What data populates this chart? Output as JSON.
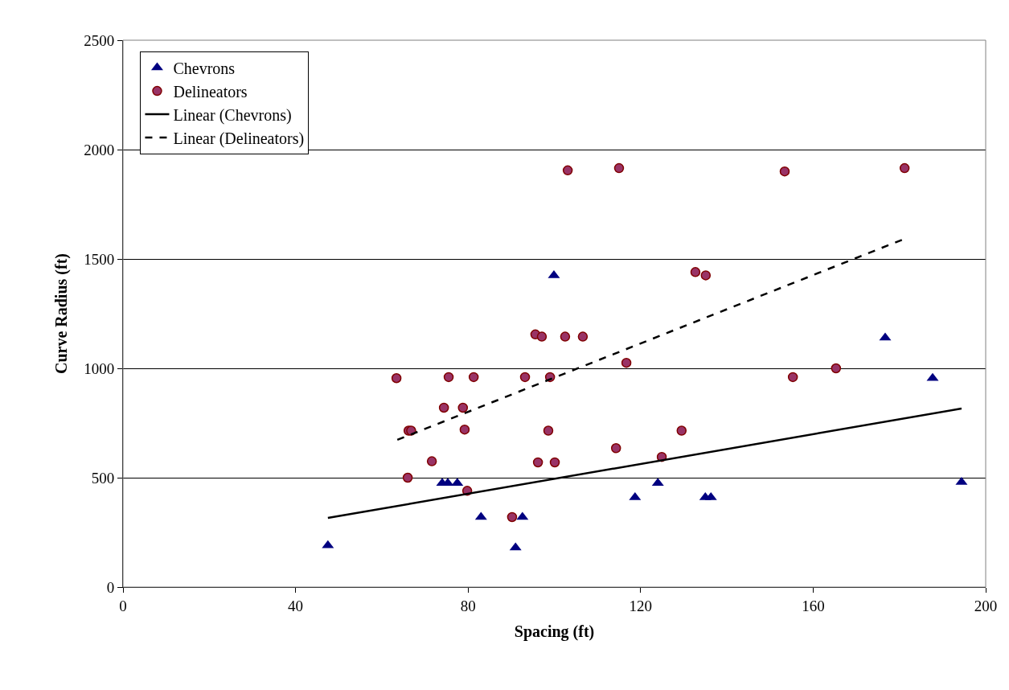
{
  "chart_data": {
    "type": "scatter",
    "xlabel": "Spacing (ft)",
    "ylabel": "Curve Radius (ft)",
    "xlim": [
      0,
      200
    ],
    "xticks": [
      0,
      40,
      80,
      120,
      160,
      200
    ],
    "ylim": [
      0,
      2500
    ],
    "yticks": [
      0,
      500,
      1000,
      1500,
      2000,
      2500
    ],
    "grid": "y",
    "legend": "top left",
    "series": [
      {
        "name": "Chevrons",
        "marker": "triangle",
        "color": "#000080",
        "x": [
          47.5,
          74,
          75.3,
          77.5,
          83,
          91,
          92.6,
          99.9,
          118.7,
          124,
          135,
          136.3,
          176.7,
          187.7,
          194.4
        ],
        "values": [
          190,
          475,
          475,
          475,
          320,
          180,
          320,
          1425,
          410,
          475,
          410,
          410,
          1140,
          955,
          480
        ]
      },
      {
        "name": "Delineators",
        "marker": "circle",
        "color": "#993366",
        "x": [
          63.4,
          66.2,
          66.8,
          66,
          71.6,
          74.4,
          75.5,
          78.8,
          79.2,
          79.8,
          81.3,
          90.2,
          93.2,
          95.6,
          96.2,
          97.1,
          98.6,
          99,
          100.1,
          102.5,
          103.1,
          106.6,
          114.3,
          115,
          116.7,
          124.9,
          129.5,
          132.7,
          135.1,
          153.4,
          155.3,
          165.3,
          181.2
        ],
        "values": [
          955,
          715,
          715,
          500,
          575,
          820,
          960,
          820,
          720,
          440,
          960,
          320,
          960,
          1155,
          570,
          1145,
          715,
          960,
          570,
          1145,
          1905,
          1145,
          635,
          1915,
          1025,
          595,
          715,
          1440,
          1425,
          1900,
          960,
          1000,
          1915
        ]
      },
      {
        "name": "Linear (Chevrons)",
        "type": "line",
        "line_style": "solid",
        "marker": "none",
        "color": "#000000",
        "x": [
          47.5,
          194.4
        ],
        "values": [
          316,
          816
        ]
      },
      {
        "name": "Linear (Delineators)",
        "type": "line",
        "line_style": "dashed",
        "marker": "none",
        "color": "#000000",
        "x": [
          63.6,
          181.2
        ],
        "values": [
          673,
          1592
        ]
      }
    ]
  }
}
